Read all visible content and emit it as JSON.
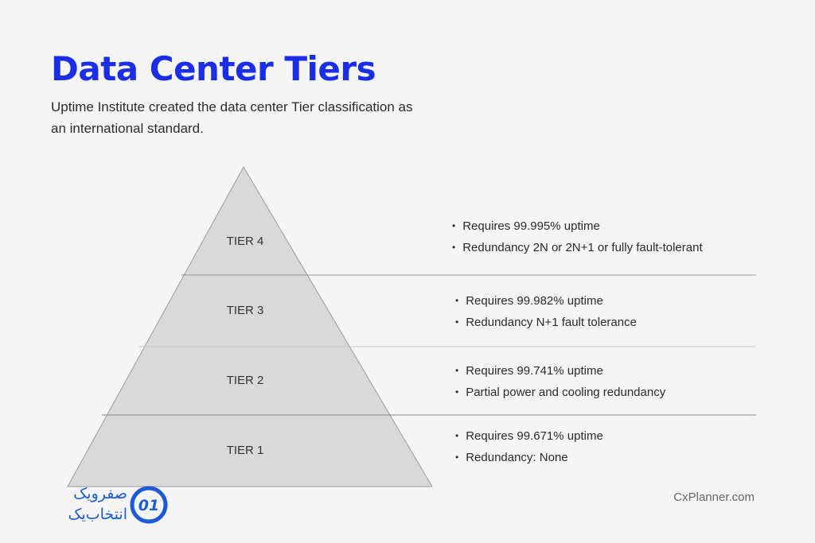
{
  "header": {
    "title": "Data Center Tiers",
    "subtitle": "Uptime Institute created the data center Tier classification as an international standard."
  },
  "tiers": [
    {
      "label": "TIER 4",
      "details": [
        "Requires 99.995% uptime",
        "Redundancy 2N or 2N+1 or fully fault-tolerant"
      ]
    },
    {
      "label": "TIER 3",
      "details": [
        "Requires 99.982% uptime",
        "Redundancy N+1 fault tolerance"
      ]
    },
    {
      "label": "TIER 2",
      "details": [
        "Requires 99.741% uptime",
        "Partial power and cooling redundancy"
      ]
    },
    {
      "label": "TIER 1",
      "details": [
        "Requires 99.671% uptime",
        "Redundancy: None"
      ]
    }
  ],
  "footer": {
    "site_credit": "CxPlanner.com",
    "brand_line1": "صفرویک",
    "brand_line2": "انتخاب‌یک",
    "brand_mark": "01"
  },
  "colors": {
    "title": "#1a2ee6",
    "pyramid_fill": "#d9d9d9",
    "brand": "#1d5bd6"
  }
}
